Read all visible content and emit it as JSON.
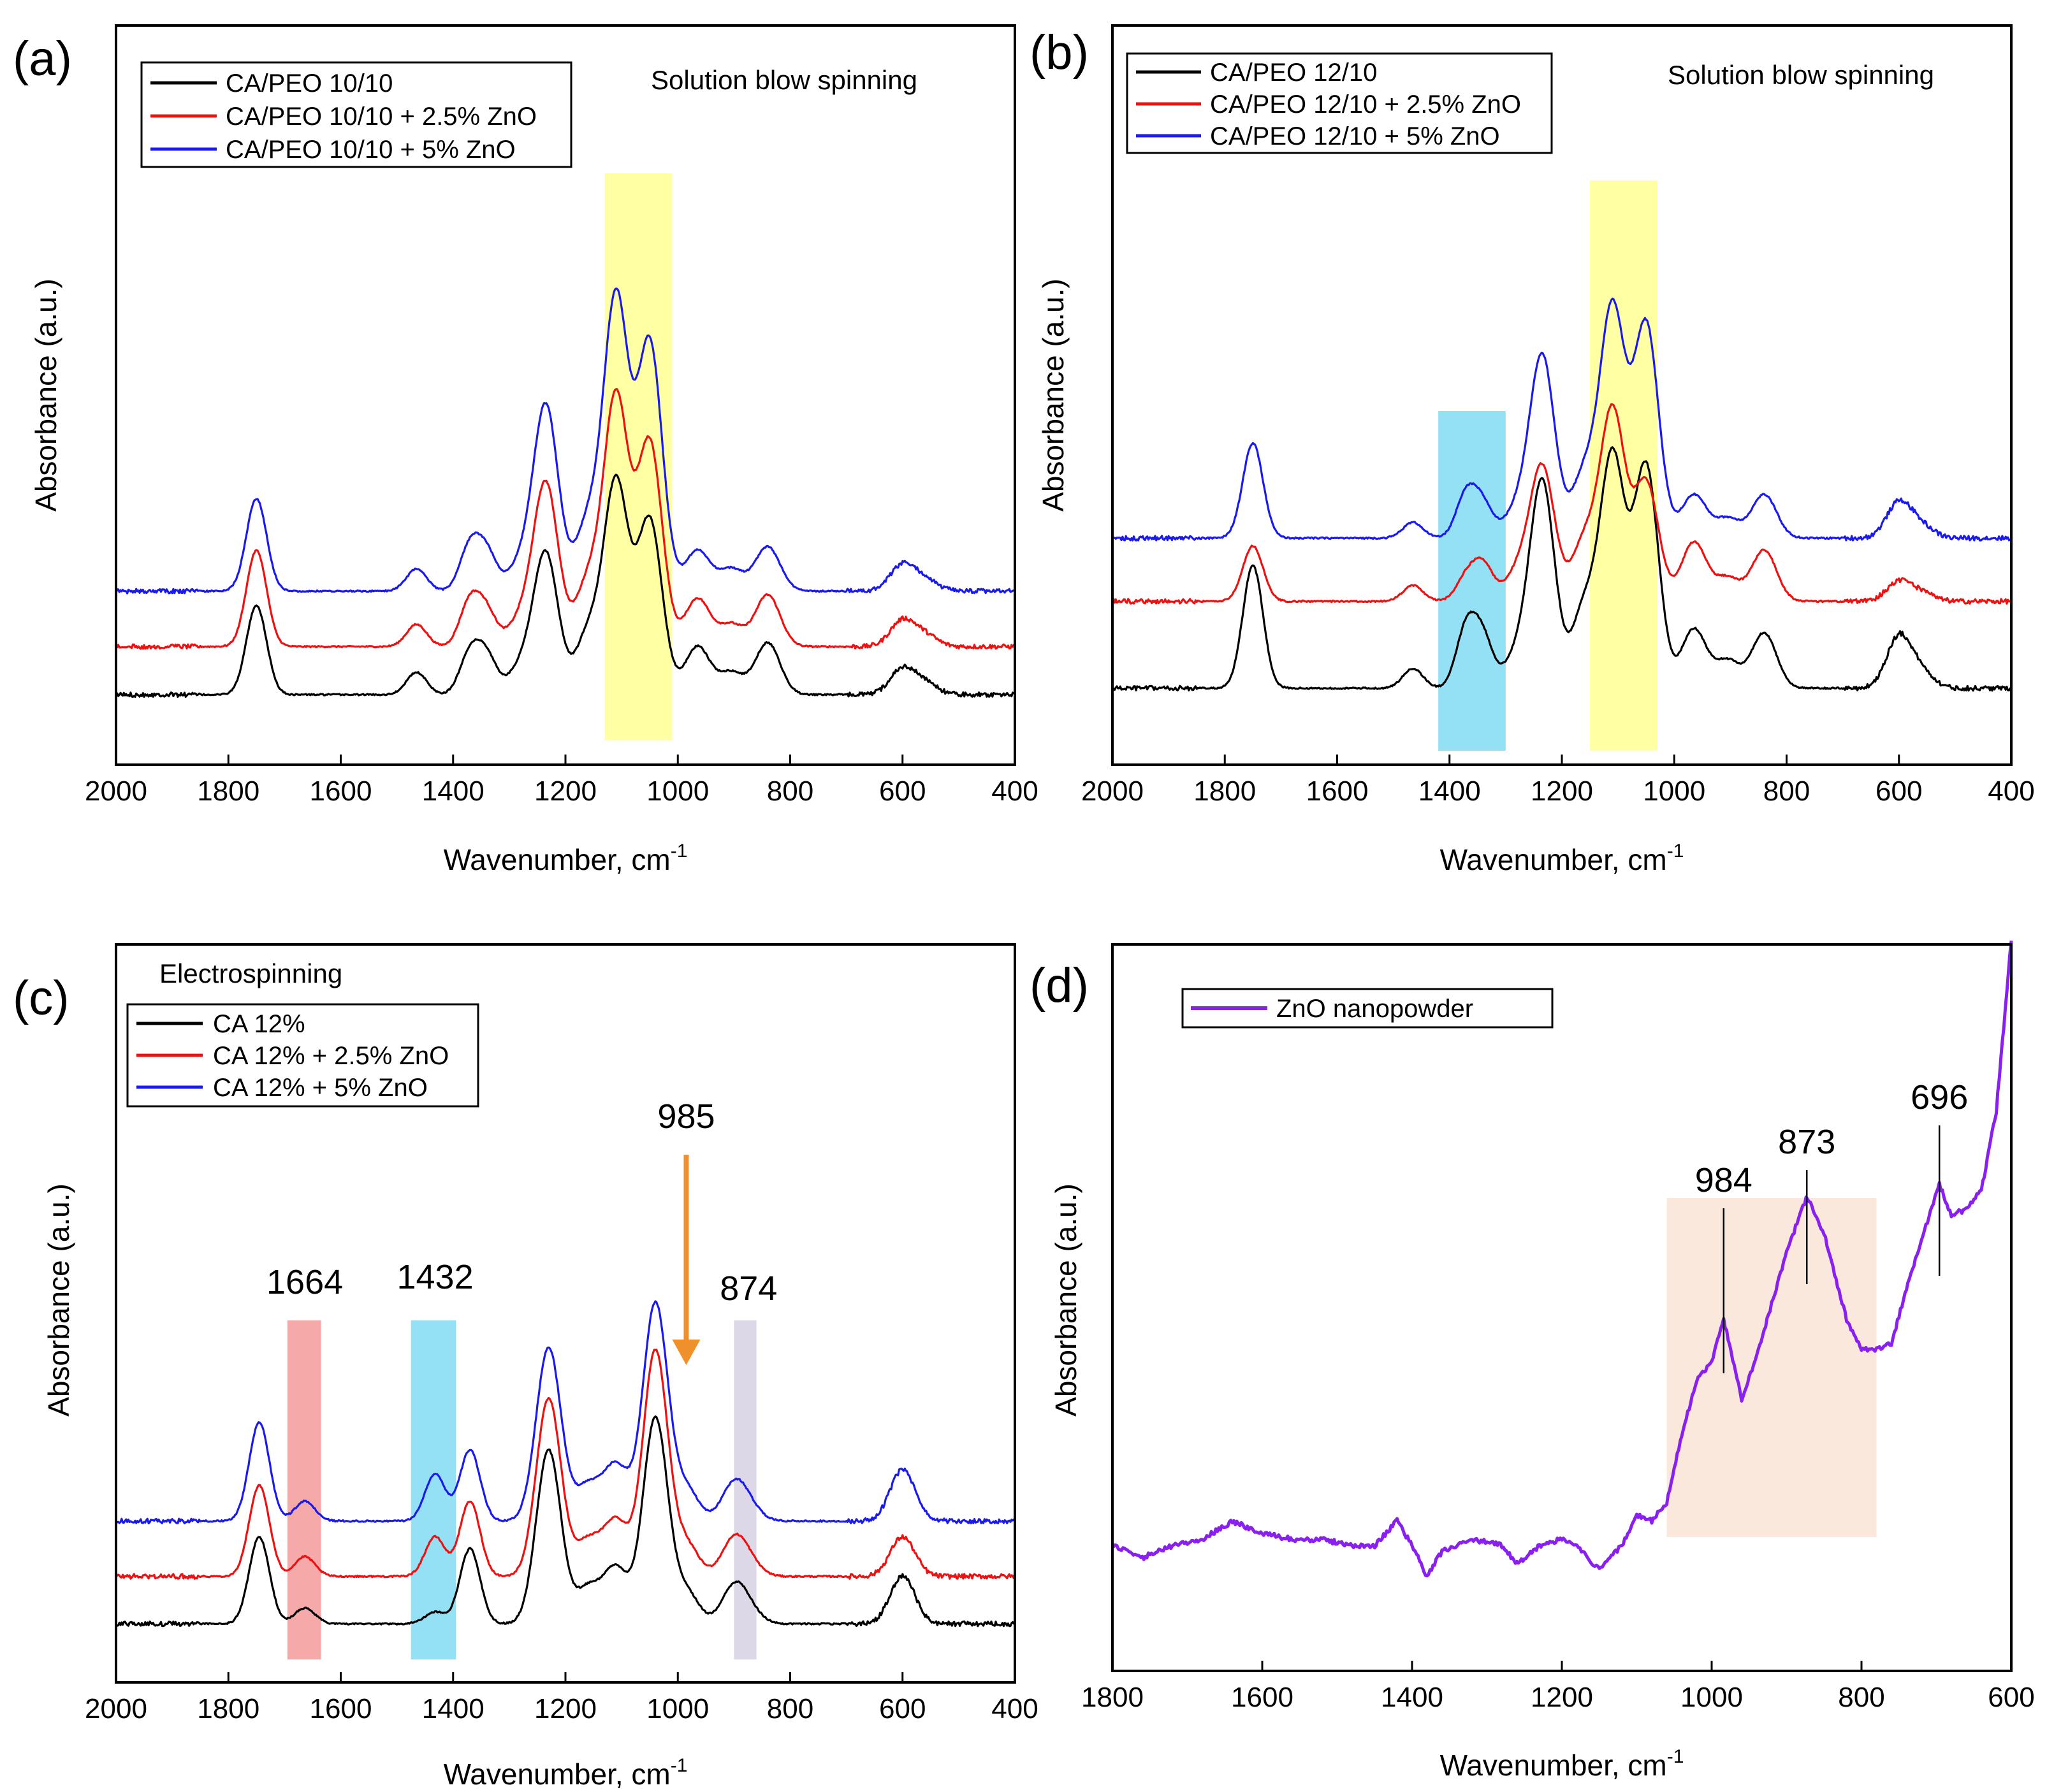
{
  "figure": {
    "colors": {
      "black": "#000000",
      "red": "#ee1111",
      "blue": "#1a1aee",
      "purple": "#8a20f0"
    }
  },
  "chart_data": [
    {
      "panel": "(a)",
      "type": "line",
      "title": "Solution blow spinning",
      "xlabel": "Wavenumber, cm",
      "xlabel_sup": "-1",
      "ylabel": "Absorbance (a.u.)",
      "xlim": [
        2000,
        400
      ],
      "xticks": [
        "2000",
        "1800",
        "1600",
        "1400",
        "1200",
        "1000",
        "800",
        "600",
        "400"
      ],
      "highlights": [
        {
          "from": 1130,
          "to": 1010,
          "color": "#ffff99"
        }
      ],
      "series": [
        {
          "name": "CA/PEO 10/10",
          "color": "#000000",
          "offset": 0.0,
          "peaks": [
            [
              1750,
              0.24
            ],
            [
              1465,
              0.06
            ],
            [
              1370,
              0.11
            ],
            [
              1340,
              0.1
            ],
            [
              1280,
              0.07
            ],
            [
              1235,
              0.38
            ],
            [
              1160,
              0.16
            ],
            [
              1110,
              0.57
            ],
            [
              1050,
              0.47
            ],
            [
              965,
              0.13
            ],
            [
              905,
              0.06
            ],
            [
              840,
              0.14
            ],
            [
              600,
              0.07
            ],
            [
              560,
              0.03
            ]
          ]
        },
        {
          "name": "CA/PEO 10/10 + 2.5% ZnO",
          "color": "#ee1111",
          "offset": 0.13,
          "peaks": [
            [
              1750,
              0.26
            ],
            [
              1465,
              0.06
            ],
            [
              1370,
              0.12
            ],
            [
              1340,
              0.09
            ],
            [
              1280,
              0.07
            ],
            [
              1235,
              0.44
            ],
            [
              1160,
              0.17
            ],
            [
              1110,
              0.67
            ],
            [
              1050,
              0.55
            ],
            [
              965,
              0.13
            ],
            [
              905,
              0.06
            ],
            [
              840,
              0.14
            ],
            [
              600,
              0.07
            ],
            [
              560,
              0.03
            ]
          ]
        },
        {
          "name": "CA/PEO 10/10 + 5% ZnO",
          "color": "#1a1aee",
          "offset": 0.28,
          "peaks": [
            [
              1750,
              0.25
            ],
            [
              1465,
              0.06
            ],
            [
              1370,
              0.12
            ],
            [
              1340,
              0.1
            ],
            [
              1280,
              0.07
            ],
            [
              1235,
              0.5
            ],
            [
              1160,
              0.18
            ],
            [
              1110,
              0.79
            ],
            [
              1050,
              0.67
            ],
            [
              965,
              0.11
            ],
            [
              905,
              0.06
            ],
            [
              840,
              0.12
            ],
            [
              600,
              0.07
            ],
            [
              560,
              0.03
            ]
          ]
        }
      ]
    },
    {
      "panel": "(b)",
      "type": "line",
      "title": "Solution blow spinning",
      "xlabel": "Wavenumber, cm",
      "xlabel_sup": "-1",
      "ylabel": "Absorbance (a.u.)",
      "xlim": [
        2000,
        400
      ],
      "xticks": [
        "2000",
        "1800",
        "1600",
        "1400",
        "1200",
        "1000",
        "800",
        "600",
        "400"
      ],
      "highlights": [
        {
          "from": 1420,
          "to": 1300,
          "color": "#88ddf4"
        },
        {
          "from": 1150,
          "to": 1030,
          "color": "#ffff99"
        }
      ],
      "series": [
        {
          "name": "CA/PEO 12/10",
          "color": "#000000",
          "offset": 0.0,
          "peaks": [
            [
              1750,
              0.31
            ],
            [
              1465,
              0.05
            ],
            [
              1370,
              0.15
            ],
            [
              1340,
              0.12
            ],
            [
              1280,
              0.08
            ],
            [
              1235,
              0.52
            ],
            [
              1160,
              0.2
            ],
            [
              1110,
              0.58
            ],
            [
              1050,
              0.56
            ],
            [
              965,
              0.15
            ],
            [
              905,
              0.07
            ],
            [
              840,
              0.14
            ],
            [
              600,
              0.13
            ],
            [
              560,
              0.04
            ]
          ]
        },
        {
          "name": "CA/PEO 12/10 + 2.5% ZnO",
          "color": "#ee1111",
          "offset": 0.22,
          "peaks": [
            [
              1750,
              0.14
            ],
            [
              1465,
              0.04
            ],
            [
              1370,
              0.06
            ],
            [
              1340,
              0.09
            ],
            [
              1280,
              0.07
            ],
            [
              1235,
              0.34
            ],
            [
              1160,
              0.15
            ],
            [
              1110,
              0.48
            ],
            [
              1050,
              0.3
            ],
            [
              965,
              0.15
            ],
            [
              905,
              0.06
            ],
            [
              840,
              0.13
            ],
            [
              600,
              0.05
            ],
            [
              560,
              0.02
            ]
          ]
        },
        {
          "name": "CA/PEO 12/10 + 5% ZnO",
          "color": "#1a1aee",
          "offset": 0.38,
          "peaks": [
            [
              1750,
              0.24
            ],
            [
              1465,
              0.04
            ],
            [
              1370,
              0.11
            ],
            [
              1340,
              0.08
            ],
            [
              1280,
              0.07
            ],
            [
              1235,
              0.46
            ],
            [
              1160,
              0.16
            ],
            [
              1110,
              0.58
            ],
            [
              1050,
              0.54
            ],
            [
              965,
              0.11
            ],
            [
              905,
              0.05
            ],
            [
              840,
              0.11
            ],
            [
              600,
              0.09
            ],
            [
              560,
              0.03
            ]
          ]
        }
      ]
    },
    {
      "panel": "(c)",
      "type": "line",
      "title": "Electrospinning",
      "xlabel": "Wavenumber, cm",
      "xlabel_sup": "-1",
      "ylabel": "Absorbance (a.u.)",
      "xlim": [
        2000,
        400
      ],
      "xticks": [
        "2000",
        "1800",
        "1600",
        "1400",
        "1200",
        "1000",
        "800",
        "600",
        "400"
      ],
      "highlights": [
        {
          "from": 1695,
          "to": 1635,
          "color": "#f4a0a0"
        },
        {
          "from": 1475,
          "to": 1395,
          "color": "#88ddf4"
        },
        {
          "from": 900,
          "to": 860,
          "color": "#d8d4e6"
        }
      ],
      "annotations": [
        {
          "label": "1664",
          "x": 1664
        },
        {
          "label": "1432",
          "x": 1432
        },
        {
          "label": "985",
          "x": 985
        },
        {
          "label": "874",
          "x": 874
        }
      ],
      "series": [
        {
          "name": "CA 12%",
          "color": "#000000",
          "offset": 0.0,
          "peaks": [
            [
              1745,
              0.22
            ],
            [
              1664,
              0.04
            ],
            [
              1432,
              0.03
            ],
            [
              1370,
              0.19
            ],
            [
              1230,
              0.44
            ],
            [
              1160,
              0.09
            ],
            [
              1110,
              0.14
            ],
            [
              1040,
              0.52
            ],
            [
              985,
              0.08
            ],
            [
              900,
              0.09
            ],
            [
              874,
              0.03
            ],
            [
              600,
              0.12
            ]
          ]
        },
        {
          "name": "CA 12% + 2.5% ZnO",
          "color": "#ee1111",
          "offset": 0.12,
          "peaks": [
            [
              1745,
              0.23
            ],
            [
              1664,
              0.05
            ],
            [
              1432,
              0.1
            ],
            [
              1370,
              0.19
            ],
            [
              1230,
              0.45
            ],
            [
              1160,
              0.09
            ],
            [
              1110,
              0.14
            ],
            [
              1040,
              0.57
            ],
            [
              985,
              0.08
            ],
            [
              900,
              0.09
            ],
            [
              874,
              0.03
            ],
            [
              600,
              0.1
            ]
          ]
        },
        {
          "name": "CA 12% + 5% ZnO",
          "color": "#1a1aee",
          "offset": 0.26,
          "peaks": [
            [
              1745,
              0.25
            ],
            [
              1664,
              0.05
            ],
            [
              1432,
              0.12
            ],
            [
              1370,
              0.18
            ],
            [
              1230,
              0.44
            ],
            [
              1160,
              0.09
            ],
            [
              1110,
              0.14
            ],
            [
              1040,
              0.55
            ],
            [
              985,
              0.08
            ],
            [
              900,
              0.09
            ],
            [
              874,
              0.03
            ],
            [
              600,
              0.13
            ]
          ]
        }
      ]
    },
    {
      "panel": "(d)",
      "type": "line",
      "xlabel": "Wavenumber, cm",
      "xlabel_sup": "-1",
      "ylabel": "Absorbance (a.u.)",
      "xlim": [
        1800,
        600
      ],
      "xticks": [
        "1800",
        "1600",
        "1400",
        "1200",
        "1000",
        "800",
        "600"
      ],
      "highlights": [
        {
          "from": 1060,
          "to": 780,
          "color": "#fbe6d8"
        }
      ],
      "annotations": [
        {
          "label": "984",
          "x": 984
        },
        {
          "label": "873",
          "x": 873
        },
        {
          "label": "696",
          "x": 696
        }
      ],
      "series": [
        {
          "name": "ZnO nanopowder",
          "color": "#8a20f0",
          "points": [
            [
              1800,
              0.13
            ],
            [
              1760,
              0.11
            ],
            [
              1720,
              0.13
            ],
            [
              1680,
              0.14
            ],
            [
              1640,
              0.17
            ],
            [
              1600,
              0.15
            ],
            [
              1560,
              0.14
            ],
            [
              1520,
              0.14
            ],
            [
              1480,
              0.13
            ],
            [
              1450,
              0.13
            ],
            [
              1420,
              0.17
            ],
            [
              1400,
              0.13
            ],
            [
              1380,
              0.08
            ],
            [
              1360,
              0.12
            ],
            [
              1320,
              0.14
            ],
            [
              1280,
              0.13
            ],
            [
              1260,
              0.1
            ],
            [
              1230,
              0.13
            ],
            [
              1200,
              0.14
            ],
            [
              1180,
              0.13
            ],
            [
              1150,
              0.09
            ],
            [
              1120,
              0.13
            ],
            [
              1100,
              0.18
            ],
            [
              1080,
              0.17
            ],
            [
              1060,
              0.2
            ],
            [
              1040,
              0.31
            ],
            [
              1020,
              0.4
            ],
            [
              1000,
              0.43
            ],
            [
              984,
              0.5
            ],
            [
              960,
              0.37
            ],
            [
              940,
              0.44
            ],
            [
              900,
              0.61
            ],
            [
              873,
              0.7
            ],
            [
              850,
              0.64
            ],
            [
              820,
              0.5
            ],
            [
              800,
              0.45
            ],
            [
              780,
              0.45
            ],
            [
              760,
              0.46
            ],
            [
              740,
              0.55
            ],
            [
              720,
              0.63
            ],
            [
              696,
              0.72
            ],
            [
              680,
              0.67
            ],
            [
              660,
              0.68
            ],
            [
              640,
              0.71
            ],
            [
              620,
              0.84
            ],
            [
              600,
              1.12
            ]
          ]
        }
      ]
    }
  ]
}
